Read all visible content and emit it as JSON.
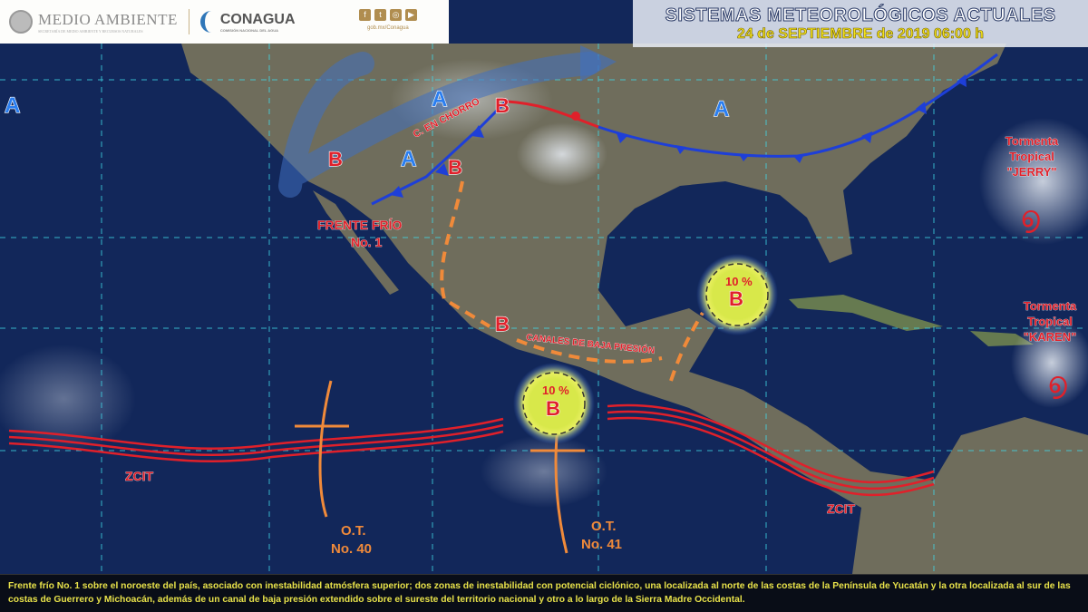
{
  "header": {
    "agency1": "MEDIO AMBIENTE",
    "agency1_sub": "SECRETARÍA DE MEDIO AMBIENTE Y RECURSOS NATURALES",
    "agency2": "CONAGUA",
    "agency2_sub": "COMISIÓN NACIONAL DEL AGUA",
    "social": [
      "facebook-icon",
      "twitter-icon",
      "instagram-icon",
      "youtube-icon"
    ],
    "social_url": "gob.mx/Conagua"
  },
  "title": {
    "main": "SISTEMAS METEOROLÓGICOS ACTUALES",
    "date": "24 de SEPTIEMBRE de 2019 06:00 h"
  },
  "map": {
    "highs": [
      "A",
      "A",
      "A",
      "A"
    ],
    "lows": [
      "B",
      "B",
      "B",
      "B",
      "B",
      "B"
    ],
    "jet_label": "C. EN CHORRO",
    "front_label": [
      "FRENTE FRÍO",
      "No. 1"
    ],
    "trough_label": "CANALES DE BAJA PRESIÓN",
    "prob1": "10 %",
    "prob2": "10 %",
    "itcz": [
      "ZCIT",
      "ZCIT"
    ],
    "wave40": [
      "O.T.",
      "No. 40"
    ],
    "wave41": [
      "O.T.",
      "No. 41"
    ],
    "storm1": [
      "Tormenta",
      "Tropical",
      "\"JERRY\""
    ],
    "storm2": [
      "Tormenta",
      "Tropical",
      "\"KAREN\""
    ],
    "colors": {
      "cold_front": "#1e3fd8",
      "warm_front": "#e0202a",
      "trough": "#f08a3a",
      "itcz": "#e0202a",
      "high": "#2a7ef0",
      "low": "#e0202a"
    }
  },
  "footer": {
    "text": "Frente frío No. 1 sobre el noroeste del país, asociado con inestabilidad atmósfera superior; dos zonas de inestabilidad con potencial ciclónico, una localizada al norte de las costas de la Península de Yucatán y la otra localizada al sur de las costas de Guerrero y Michoacán, además de un canal de baja presión extendido sobre el sureste del territorio nacional y otro a lo largo de la Sierra Madre Occidental."
  }
}
